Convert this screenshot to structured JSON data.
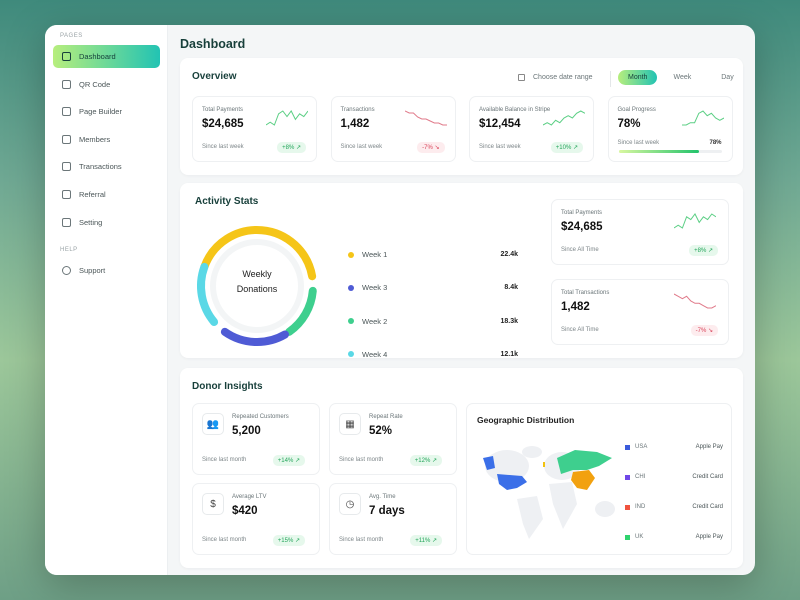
{
  "sidebar": {
    "pages_label": "PAGES",
    "help_label": "HELP",
    "items": [
      {
        "label": "Dashboard",
        "icon": "grid-icon"
      },
      {
        "label": "QR Code",
        "icon": "qr-icon"
      },
      {
        "label": "Page Builder",
        "icon": "page-plus-icon"
      },
      {
        "label": "Members",
        "icon": "users-icon"
      },
      {
        "label": "Transactions",
        "icon": "transfer-icon"
      },
      {
        "label": "Referral",
        "icon": "gift-icon"
      },
      {
        "label": "Setting",
        "icon": "gear-icon"
      }
    ],
    "support": "Support"
  },
  "header": {
    "title": "Dashboard"
  },
  "overview": {
    "title": "Overview",
    "date_range": "Choose date range",
    "periods": [
      "Month",
      "Week",
      "Day"
    ],
    "cards": [
      {
        "label": "Total Payments",
        "value": "$24,685",
        "since": "Since last week",
        "change": "+8% ↗",
        "trend": "up",
        "spark": [
          3,
          4,
          3,
          7,
          8,
          6,
          8,
          5,
          7,
          6,
          8
        ]
      },
      {
        "label": "Transactions",
        "value": "1,482",
        "since": "Since last week",
        "change": "-7% ↘",
        "trend": "down",
        "spark": [
          9,
          8,
          8,
          6,
          5,
          5,
          4,
          3,
          3,
          2,
          2
        ]
      },
      {
        "label": "Available Balance in Stripe",
        "value": "$12,454",
        "since": "Since last week",
        "change": "+10% ↗",
        "trend": "up",
        "spark": [
          2,
          3,
          2,
          4,
          3,
          5,
          6,
          5,
          7,
          8,
          7
        ]
      },
      {
        "label": "Goal Progress",
        "value": "78%",
        "since": "Since last week",
        "progress_label": "78%",
        "progress": 78,
        "trend": "up",
        "spark": [
          2,
          2,
          3,
          3,
          7,
          8,
          6,
          7,
          5,
          4,
          5
        ]
      }
    ]
  },
  "activity": {
    "title": "Activity Stats",
    "donut_label_1": "Weekly",
    "donut_label_2": "Donations",
    "legend": [
      {
        "name": "Week 1",
        "value": "22.4k",
        "color": "#f5c518"
      },
      {
        "name": "Week 3",
        "value": "8.4k",
        "color": "#4f5bd5"
      },
      {
        "name": "Week 2",
        "value": "18.3k",
        "color": "#3ecf8e"
      },
      {
        "name": "Week 4",
        "value": "12.1k",
        "color": "#5ad8e6"
      }
    ],
    "cards": [
      {
        "label": "Total Payments",
        "value": "$24,685",
        "since": "Since All Time",
        "change": "+8% ↗",
        "trend": "up",
        "spark": [
          3,
          4,
          3,
          7,
          6,
          8,
          5,
          7,
          6,
          8,
          7
        ]
      },
      {
        "label": "Total Transactions",
        "value": "1,482",
        "since": "Since All Time",
        "change": "-7% ↘",
        "trend": "down",
        "spark": [
          9,
          8,
          7,
          8,
          6,
          5,
          5,
          4,
          3,
          3,
          4
        ]
      }
    ]
  },
  "donor": {
    "title": "Donor Insights",
    "cards": [
      {
        "label": "Repeated Customers",
        "value": "5,200",
        "since": "Since last month",
        "change": "+14% ↗",
        "icon": "users-icon"
      },
      {
        "label": "Repeat Rate",
        "value": "52%",
        "since": "Since last month",
        "change": "+12% ↗",
        "icon": "calendar-icon"
      },
      {
        "label": "Average LTV",
        "value": "$420",
        "since": "Since last month",
        "change": "+15% ↗",
        "icon": "dollar-icon"
      },
      {
        "label": "Avg. Time",
        "value": "7 days",
        "since": "Since last month",
        "change": "+11% ↗",
        "icon": "clock-icon"
      }
    ],
    "geo": {
      "title": "Geographic Distribution",
      "legend": [
        {
          "country": "USA",
          "method": "Apple Pay",
          "color": "#3b5bdb"
        },
        {
          "country": "CHI",
          "method": "Credit Card",
          "color": "#7048e8"
        },
        {
          "country": "IND",
          "method": "Credit Card",
          "color": "#f0533f"
        },
        {
          "country": "UK",
          "method": "Apple Pay",
          "color": "#2fd36e"
        }
      ]
    }
  }
}
